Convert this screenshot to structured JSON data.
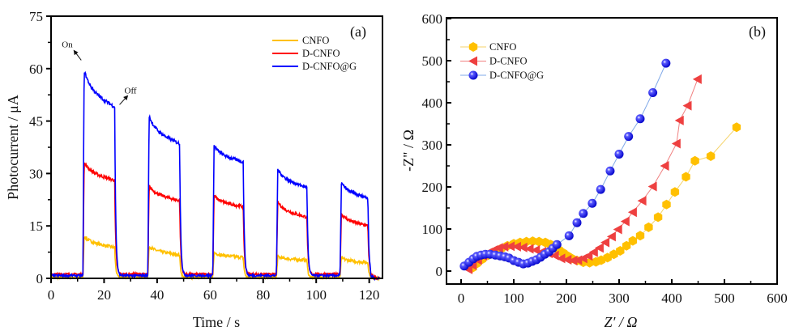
{
  "chart_data": [
    {
      "type": "line",
      "panel_label": "(a)",
      "xlabel": "Time / s",
      "ylabel": "Photocurrent / μA",
      "xlim": [
        0,
        125
      ],
      "ylim": [
        0,
        75
      ],
      "xticks": [
        0,
        20,
        40,
        60,
        80,
        100,
        120
      ],
      "yticks": [
        0,
        15,
        30,
        45,
        60,
        75
      ],
      "grid": false,
      "legend_position": "top-right",
      "annotations": [
        {
          "text": "On",
          "x": 12,
          "y": 61
        },
        {
          "text": "Off",
          "x": 24,
          "y": 49
        }
      ],
      "cycles": [
        {
          "on": 12,
          "off": 24
        },
        {
          "on": 36.5,
          "off": 48.5
        },
        {
          "on": 61,
          "off": 72.5
        },
        {
          "on": 85,
          "off": 96.5
        },
        {
          "on": 109,
          "off": 119.5
        }
      ],
      "end_time": 124,
      "series": [
        {
          "name": "CNFO",
          "color": "#FFC000",
          "baseline": 0.3,
          "peaks": [
            12.5,
            9.5,
            7.5,
            6.3,
            6.0
          ],
          "plateau_ends": [
            8.8,
            6.7,
            6.0,
            5.2,
            4.5
          ]
        },
        {
          "name": "D-CNFO",
          "color": "#FF0000",
          "baseline": 1.2,
          "peaks": [
            33.8,
            27.0,
            24.0,
            22.5,
            19.0
          ],
          "plateau_ends": [
            28.0,
            22.2,
            20.5,
            17.5,
            15.0
          ]
        },
        {
          "name": "D-CNFO@G",
          "color": "#0000FF",
          "baseline": 0.8,
          "peaks": [
            61.0,
            47.5,
            38.6,
            32.0,
            28.0
          ],
          "plateau_ends": [
            49.0,
            38.5,
            33.3,
            26.0,
            23.0
          ]
        }
      ]
    },
    {
      "type": "scatter",
      "panel_label": "(b)",
      "xlabel": "Z′ / Ω",
      "ylabel": "-Z\" / Ω",
      "xlim": [
        -28,
        600
      ],
      "ylim": [
        -30,
        600
      ],
      "xticks": [
        0,
        100,
        200,
        300,
        400,
        500,
        600
      ],
      "yticks": [
        0,
        100,
        200,
        300,
        400,
        500,
        600
      ],
      "grid": false,
      "legend_position": "top-left",
      "series": [
        {
          "name": "CNFO",
          "color": "#FFC000",
          "marker": "hexagon",
          "points": [
            [
              22,
              8
            ],
            [
              30,
              18
            ],
            [
              40,
              28
            ],
            [
              52,
              38
            ],
            [
              64,
              46
            ],
            [
              76,
              53
            ],
            [
              88,
              60
            ],
            [
              100,
              65
            ],
            [
              112,
              68
            ],
            [
              124,
              70
            ],
            [
              136,
              71
            ],
            [
              148,
              70
            ],
            [
              160,
              68
            ],
            [
              170,
              63
            ],
            [
              178,
              57
            ],
            [
              186,
              50
            ],
            [
              194,
              43
            ],
            [
              202,
              36
            ],
            [
              210,
              30
            ],
            [
              220,
              25
            ],
            [
              232,
              21
            ],
            [
              244,
              20
            ],
            [
              256,
              22
            ],
            [
              266,
              26
            ],
            [
              278,
              32
            ],
            [
              290,
              40
            ],
            [
              302,
              48
            ],
            [
              314,
              60
            ],
            [
              326,
              72
            ],
            [
              340,
              84
            ],
            [
              356,
              104
            ],
            [
              374,
              128
            ],
            [
              390,
              158
            ],
            [
              406,
              188
            ],
            [
              427,
              224
            ],
            [
              444,
              262
            ],
            [
              474,
              273
            ],
            [
              523,
              342
            ]
          ]
        },
        {
          "name": "D-CNFO",
          "color": "#EE4040",
          "marker": "triangle-left",
          "points": [
            [
              14,
              4
            ],
            [
              22,
              14
            ],
            [
              32,
              26
            ],
            [
              42,
              36
            ],
            [
              52,
              44
            ],
            [
              62,
              50
            ],
            [
              72,
              55
            ],
            [
              82,
              58
            ],
            [
              94,
              59
            ],
            [
              106,
              58
            ],
            [
              118,
              56
            ],
            [
              130,
              53
            ],
            [
              142,
              50
            ],
            [
              154,
              46
            ],
            [
              166,
              42
            ],
            [
              178,
              37
            ],
            [
              190,
              30
            ],
            [
              202,
              27
            ],
            [
              213,
              25
            ],
            [
              222,
              26
            ],
            [
              232,
              30
            ],
            [
              242,
              36
            ],
            [
              252,
              45
            ],
            [
              263,
              55
            ],
            [
              274,
              68
            ],
            [
              286,
              82
            ],
            [
              298,
              99
            ],
            [
              312,
              118
            ],
            [
              326,
              140
            ],
            [
              344,
              167
            ],
            [
              364,
              201
            ],
            [
              387,
              250
            ],
            [
              409,
              303
            ],
            [
              415,
              358
            ],
            [
              430,
              393
            ],
            [
              449,
              456
            ]
          ]
        },
        {
          "name": "D-CNFO@G",
          "color": "#0000EE",
          "marker": "sphere",
          "points": [
            [
              6,
              12
            ],
            [
              15,
              21
            ],
            [
              23,
              29
            ],
            [
              30,
              35
            ],
            [
              38,
              38
            ],
            [
              46,
              40
            ],
            [
              55,
              40
            ],
            [
              65,
              38
            ],
            [
              74,
              36
            ],
            [
              83,
              34
            ],
            [
              91,
              31
            ],
            [
              100,
              25
            ],
            [
              109,
              21
            ],
            [
              118,
              17
            ],
            [
              127,
              19
            ],
            [
              135,
              23
            ],
            [
              143,
              27
            ],
            [
              151,
              33
            ],
            [
              159,
              40
            ],
            [
              167,
              46
            ],
            [
              174,
              54
            ],
            [
              182,
              63
            ],
            [
              205,
              84
            ],
            [
              220,
              115
            ],
            [
              232,
              137
            ],
            [
              249,
              161
            ],
            [
              265,
              194
            ],
            [
              283,
              238
            ],
            [
              300,
              278
            ],
            [
              318,
              320
            ],
            [
              340,
              362
            ],
            [
              364,
              424
            ],
            [
              389,
              494
            ]
          ]
        }
      ]
    }
  ]
}
